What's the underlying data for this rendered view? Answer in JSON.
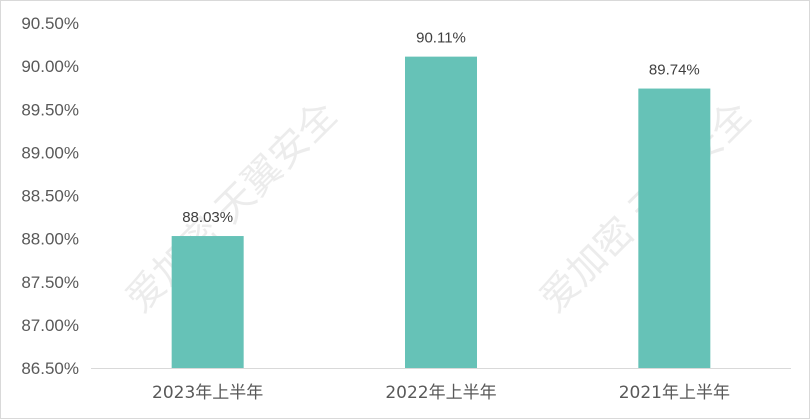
{
  "chart_data": {
    "type": "bar",
    "categories": [
      "2023年上半年",
      "2022年上半年",
      "2021年上半年"
    ],
    "values": [
      88.03,
      90.11,
      89.74
    ],
    "data_labels": [
      "88.03%",
      "90.11%",
      "89.74%"
    ],
    "title": "",
    "xlabel": "",
    "ylabel": "",
    "ylim": [
      86.5,
      90.5
    ],
    "yticks": [
      "86.50%",
      "87.00%",
      "87.50%",
      "88.00%",
      "88.50%",
      "89.00%",
      "89.50%",
      "90.00%",
      "90.50%"
    ],
    "grid": false,
    "legend": "none",
    "bar_color": "#66c2b7"
  },
  "watermarks": [
    "爱加密 天翼安全",
    "爱加密 天翼安全"
  ]
}
